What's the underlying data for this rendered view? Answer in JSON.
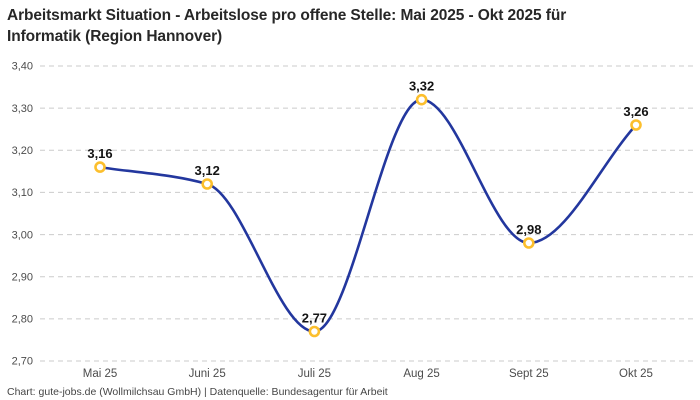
{
  "header": {
    "title": "Arbeitsmarkt Situation - Arbeitslose pro offene Stelle: Mai 2025 - Okt 2025 für Informatik (Region Hannover)",
    "title_line1": "Arbeitsmarkt Situation - Arbeitslose pro offene Stelle: Mai 2025 - Okt 2025 für",
    "title_line2": "Informatik (Region Hannover)"
  },
  "chart_data": {
    "type": "line",
    "title": "Arbeitsmarkt Situation - Arbeitslose pro offene Stelle: Mai 2025 - Okt 2025 für Informatik (Region Hannover)",
    "categories": [
      "Mai 25",
      "Juni 25",
      "Juli 25",
      "Aug 25",
      "Sept 25",
      "Okt 25"
    ],
    "values": [
      3.16,
      3.12,
      2.77,
      3.32,
      2.98,
      3.26
    ],
    "value_labels": [
      "3,16",
      "3,12",
      "2,77",
      "3,32",
      "2,98",
      "3,26"
    ],
    "xlabel": "",
    "ylabel": "",
    "ylim": [
      2.7,
      3.4
    ],
    "y_tick_values": [
      3.4,
      3.3,
      3.2,
      3.1,
      3.0,
      2.9,
      2.8,
      2.7
    ],
    "y_tick_labels": [
      "3,40",
      "3,30",
      "3,20",
      "3,10",
      "3,00",
      "2,90",
      "2,80",
      "2,70"
    ],
    "grid": "horizontal-dashed",
    "legend": "none",
    "curve": "smooth-monotone",
    "colors": {
      "line": "#23379e",
      "marker_ring": "#fcbf2d",
      "marker_fill": "#ffffff",
      "gridline": "#cbcbcb",
      "tick_label": "#4c4c4c",
      "value_label": "#141414"
    }
  },
  "footer": {
    "text": "Chart: gute-jobs.de (Wollmilchsau GmbH) | Datenquelle: Bundesagentur für Arbeit"
  }
}
